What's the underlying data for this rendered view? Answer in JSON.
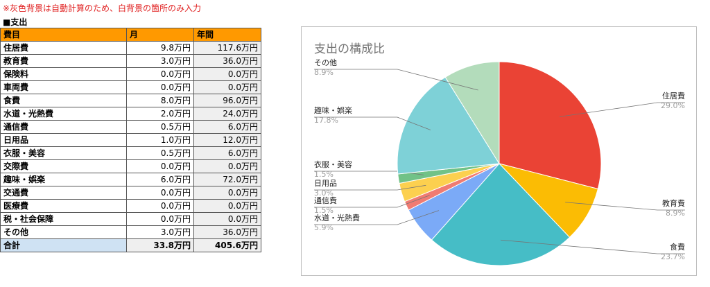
{
  "note": "※灰色背景は自動計算のため、白背景の箇所のみ入力",
  "section_title": "■支出",
  "table": {
    "headers": [
      "費目",
      "月",
      "年間"
    ],
    "rows": [
      {
        "item": "住居費",
        "monthly": "9.8万円",
        "annual": "117.6万円"
      },
      {
        "item": "教育費",
        "monthly": "3.0万円",
        "annual": "36.0万円"
      },
      {
        "item": "保険料",
        "monthly": "0.0万円",
        "annual": "0.0万円"
      },
      {
        "item": "車両費",
        "monthly": "0.0万円",
        "annual": "0.0万円"
      },
      {
        "item": "食費",
        "monthly": "8.0万円",
        "annual": "96.0万円"
      },
      {
        "item": "水道・光熱費",
        "monthly": "2.0万円",
        "annual": "24.0万円"
      },
      {
        "item": "通信費",
        "monthly": "0.5万円",
        "annual": "6.0万円"
      },
      {
        "item": "日用品",
        "monthly": "1.0万円",
        "annual": "12.0万円"
      },
      {
        "item": "衣服・美容",
        "monthly": "0.5万円",
        "annual": "6.0万円"
      },
      {
        "item": "交際費",
        "monthly": "0.0万円",
        "annual": "0.0万円"
      },
      {
        "item": "趣味・娯楽",
        "monthly": "6.0万円",
        "annual": "72.0万円"
      },
      {
        "item": "交通費",
        "monthly": "0.0万円",
        "annual": "0.0万円"
      },
      {
        "item": "医療費",
        "monthly": "0.0万円",
        "annual": "0.0万円"
      },
      {
        "item": "税・社会保障",
        "monthly": "0.0万円",
        "annual": "0.0万円"
      },
      {
        "item": "その他",
        "monthly": "3.0万円",
        "annual": "36.0万円"
      }
    ],
    "total": {
      "item": "合計",
      "monthly": "33.8万円",
      "annual": "405.6万円"
    }
  },
  "chart_data": {
    "type": "pie",
    "title": "支出の構成比",
    "slices": [
      {
        "label": "住居費",
        "value": 9.8,
        "pct_label": "29.0%",
        "color": "#ea4335"
      },
      {
        "label": "教育費",
        "value": 3.0,
        "pct_label": "8.9%",
        "color": "#fbbc04"
      },
      {
        "label": "食費",
        "value": 8.0,
        "pct_label": "23.7%",
        "color": "#46bdc6"
      },
      {
        "label": "水道・光熱費",
        "value": 2.0,
        "pct_label": "5.9%",
        "color": "#7baaf7"
      },
      {
        "label": "通信費",
        "value": 0.5,
        "pct_label": "1.5%",
        "color": "#f07b72"
      },
      {
        "label": "日用品",
        "value": 1.0,
        "pct_label": "3.0%",
        "color": "#fcd04f"
      },
      {
        "label": "衣服・美容",
        "value": 0.5,
        "pct_label": "1.5%",
        "color": "#71c287"
      },
      {
        "label": "趣味・娯楽",
        "value": 6.0,
        "pct_label": "17.8%",
        "color": "#7ed1d7"
      },
      {
        "label": "その他",
        "value": 3.0,
        "pct_label": "8.9%",
        "color": "#b3dcbb"
      }
    ],
    "legend": "none",
    "label_style": "callout-lines"
  }
}
